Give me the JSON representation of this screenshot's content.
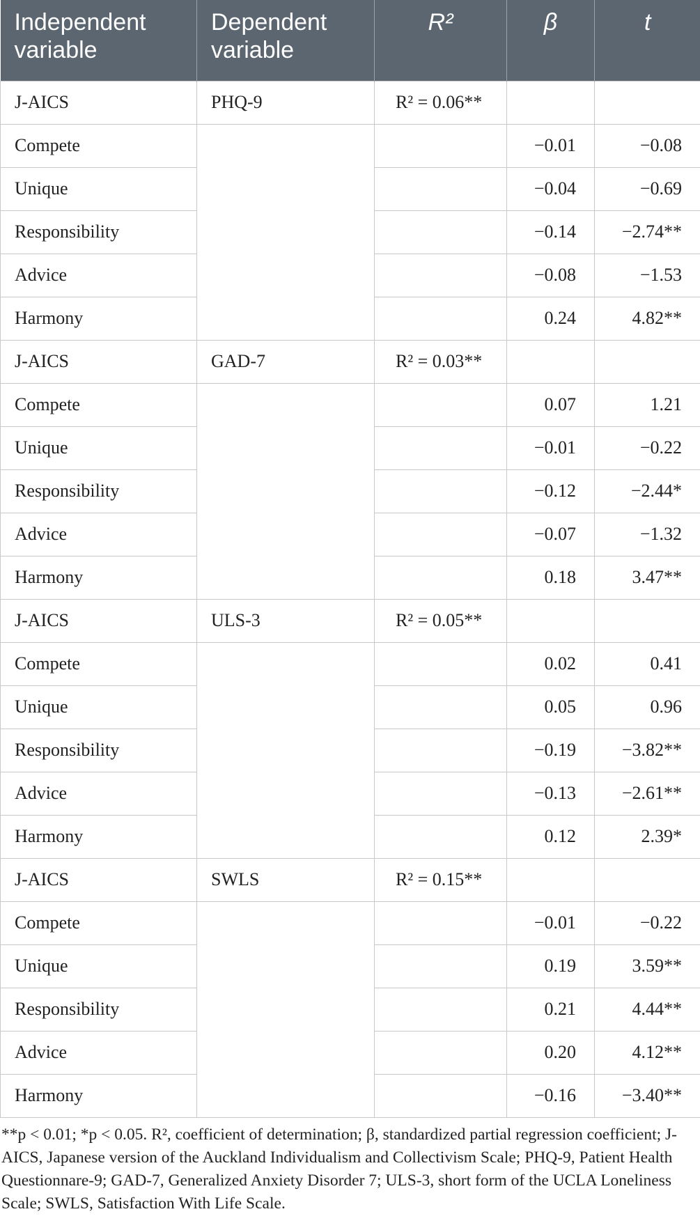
{
  "table": {
    "header": [
      "Independent variable",
      "Dependent variable",
      "R²",
      "β",
      "t"
    ],
    "groups": [
      {
        "independent": "J-AICS",
        "dependent": "PHQ-9",
        "r2": "R² = 0.06**",
        "predictors": [
          {
            "name": "Compete",
            "beta": "−0.01",
            "t": "−0.08"
          },
          {
            "name": "Unique",
            "beta": "−0.04",
            "t": "−0.69"
          },
          {
            "name": "Responsibility",
            "beta": "−0.14",
            "t": "−2.74**"
          },
          {
            "name": "Advice",
            "beta": "−0.08",
            "t": "−1.53"
          },
          {
            "name": "Harmony",
            "beta": "0.24",
            "t": "4.82**"
          }
        ]
      },
      {
        "independent": "J-AICS",
        "dependent": "GAD-7",
        "r2": "R² = 0.03**",
        "predictors": [
          {
            "name": "Compete",
            "beta": "0.07",
            "t": "1.21"
          },
          {
            "name": "Unique",
            "beta": "−0.01",
            "t": "−0.22"
          },
          {
            "name": "Responsibility",
            "beta": "−0.12",
            "t": "−2.44*"
          },
          {
            "name": "Advice",
            "beta": "−0.07",
            "t": "−1.32"
          },
          {
            "name": "Harmony",
            "beta": "0.18",
            "t": "3.47**"
          }
        ]
      },
      {
        "independent": "J-AICS",
        "dependent": "ULS-3",
        "r2": "R² = 0.05**",
        "predictors": [
          {
            "name": "Compete",
            "beta": "0.02",
            "t": "0.41"
          },
          {
            "name": "Unique",
            "beta": "0.05",
            "t": "0.96"
          },
          {
            "name": "Responsibility",
            "beta": "−0.19",
            "t": "−3.82**"
          },
          {
            "name": "Advice",
            "beta": "−0.13",
            "t": "−2.61**"
          },
          {
            "name": "Harmony",
            "beta": "0.12",
            "t": "2.39*"
          }
        ]
      },
      {
        "independent": "J-AICS",
        "dependent": "SWLS",
        "r2": "R² = 0.15**",
        "predictors": [
          {
            "name": "Compete",
            "beta": "−0.01",
            "t": "−0.22"
          },
          {
            "name": "Unique",
            "beta": "0.19",
            "t": "3.59**"
          },
          {
            "name": "Responsibility",
            "beta": "0.21",
            "t": "4.44**"
          },
          {
            "name": "Advice",
            "beta": "0.20",
            "t": "4.12**"
          },
          {
            "name": "Harmony",
            "beta": "−0.16",
            "t": "−3.40**"
          }
        ]
      }
    ]
  },
  "footnote": "**p < 0.01; *p < 0.05. R², coefficient of determination; β, standardized partial regression coefficient; J-AICS, Japanese version of the Auckland Individualism and Collectivism Scale; PHQ-9, Patient Health Questionnare-9; GAD-7, Generalized Anxiety Disorder 7; ULS-3, short form of the UCLA Loneliness Scale; SWLS, Satisfaction With Life Scale."
}
